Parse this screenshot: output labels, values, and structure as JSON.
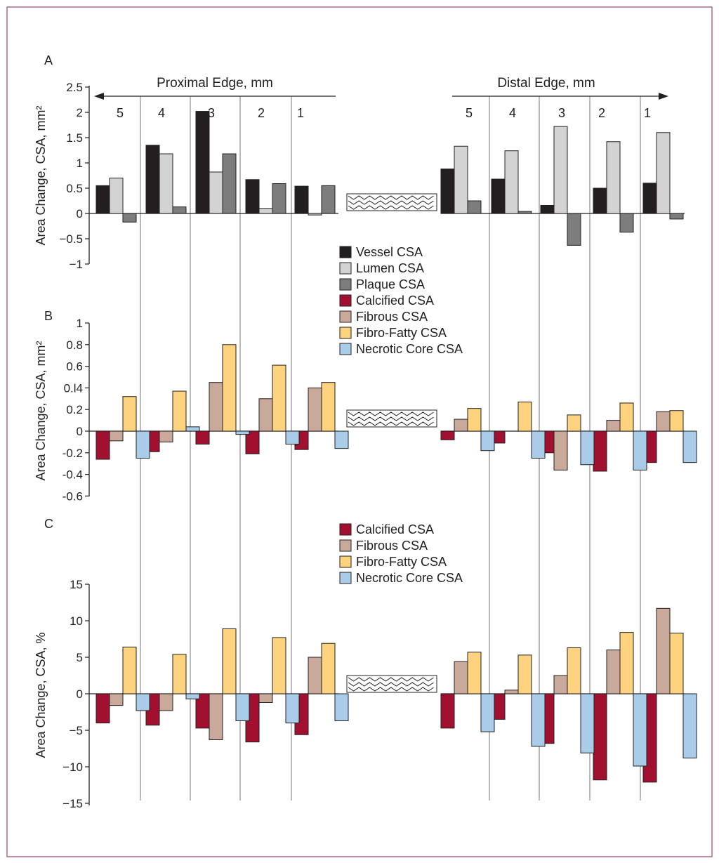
{
  "colors": {
    "Vessel CSA": "#231f20",
    "Lumen CSA": "#d3d3d3",
    "Plaque CSA": "#7d7d7d",
    "Calcified CSA": "#a1112f",
    "Fibrous CSA": "#c9a99a",
    "Fibro-Fatty CSA": "#fdd380",
    "Necrotic Core CSA": "#a9cde9",
    "frame": "#b06a86"
  },
  "header": {
    "proximal_label": "Proximal Edge, mm",
    "distal_label": "Distal Edge, mm"
  },
  "chart_data": [
    {
      "panel": "A",
      "type": "bar",
      "ylabel": "Area Change, CSA, mm²",
      "ylim": [
        -1,
        2.5
      ],
      "yticks": [
        "2.5",
        "2",
        "1.5",
        "1",
        "0.5",
        "0",
        "−0.5",
        "−1"
      ],
      "ytick_values": [
        2.5,
        2,
        1.5,
        1,
        0.5,
        0,
        -0.5,
        -1
      ],
      "proximal_categories": [
        "5",
        "4",
        "3",
        "2",
        "1"
      ],
      "distal_categories": [
        "5",
        "4",
        "3",
        "2",
        "1"
      ],
      "legend": [
        "Vessel CSA",
        "Lumen CSA",
        "Plaque CSA",
        "Calcified CSA",
        "Fibrous CSA",
        "Fibro-Fatty CSA",
        "Necrotic Core CSA"
      ],
      "series": [
        {
          "name": "Vessel CSA",
          "proximal": [
            0.55,
            1.35,
            2.02,
            0.67,
            0.54
          ],
          "distal": [
            0.88,
            0.68,
            0.16,
            0.5,
            0.6
          ]
        },
        {
          "name": "Lumen CSA",
          "proximal": [
            0.7,
            1.18,
            0.82,
            0.1,
            -0.03
          ],
          "distal": [
            1.33,
            1.24,
            1.72,
            1.42,
            1.6
          ]
        },
        {
          "name": "Plaque CSA",
          "proximal": [
            -0.17,
            0.13,
            1.18,
            0.59,
            0.55
          ],
          "distal": [
            0.25,
            0.04,
            -0.63,
            -0.37,
            -0.11
          ]
        }
      ]
    },
    {
      "panel": "B",
      "type": "bar",
      "ylabel": "Area Change, CSA, mm²",
      "ylim": [
        -0.6,
        1
      ],
      "yticks": [
        "1",
        "0.8",
        "0.6",
        "0.l4",
        "0.2",
        "0",
        "-0.2",
        "-0.4",
        "-0.6"
      ],
      "ytick_values": [
        1,
        0.8,
        0.6,
        0.4,
        0.2,
        0,
        -0.2,
        -0.4,
        -0.6
      ],
      "series": [
        {
          "name": "Calcified CSA",
          "proximal": [
            -0.26,
            -0.19,
            -0.12,
            -0.21,
            -0.17
          ],
          "distal": [
            -0.08,
            -0.11,
            -0.2,
            -0.37,
            -0.29
          ]
        },
        {
          "name": "Fibrous CSA",
          "proximal": [
            -0.09,
            -0.1,
            0.45,
            0.3,
            0.4
          ],
          "distal": [
            0.11,
            0,
            -0.36,
            0.1,
            0.18
          ]
        },
        {
          "name": "Fibro-Fatty CSA",
          "proximal": [
            0.32,
            0.37,
            0.8,
            0.61,
            0.45
          ],
          "distal": [
            0.21,
            0.27,
            0.15,
            0.26,
            0.19
          ]
        },
        {
          "name": "Necrotic Core CSA",
          "proximal": [
            -0.25,
            0.04,
            -0.03,
            -0.12,
            -0.16
          ],
          "distal": [
            -0.18,
            -0.25,
            -0.31,
            -0.36,
            -0.29
          ]
        }
      ]
    },
    {
      "panel": "C",
      "type": "bar",
      "ylabel": "Area Change, CSA, %",
      "ylim": [
        -15,
        15
      ],
      "yticks": [
        "15",
        "10",
        "5",
        "0",
        "−5",
        "−10",
        "−15"
      ],
      "ytick_values": [
        15,
        10,
        5,
        0,
        -5,
        -10,
        -15
      ],
      "legend": [
        "Calcified CSA",
        "Fibrous CSA",
        "Fibro-Fatty CSA",
        "Necrotic Core CSA"
      ],
      "series": [
        {
          "name": "Calcified CSA",
          "proximal": [
            -4,
            -4.3,
            -4.7,
            -6.6,
            -5.6
          ],
          "distal": [
            -4.7,
            -3.5,
            -6.8,
            -11.8,
            -12.1
          ]
        },
        {
          "name": "Fibrous CSA",
          "proximal": [
            -1.6,
            -2.3,
            -6.3,
            -1.2,
            5
          ],
          "distal": [
            4.4,
            0.5,
            2.5,
            6,
            11.7
          ]
        },
        {
          "name": "Fibro-Fatty CSA",
          "proximal": [
            6.4,
            5.4,
            8.9,
            7.7,
            6.9
          ],
          "distal": [
            5.7,
            5.3,
            6.3,
            8.4,
            8.3
          ]
        },
        {
          "name": "Necrotic Core CSA",
          "proximal": [
            -2.3,
            -0.7,
            -3.7,
            -4,
            -3.7
          ],
          "distal": [
            -5.2,
            -7.2,
            -8.1,
            -9.9,
            -8.8
          ]
        }
      ]
    }
  ]
}
